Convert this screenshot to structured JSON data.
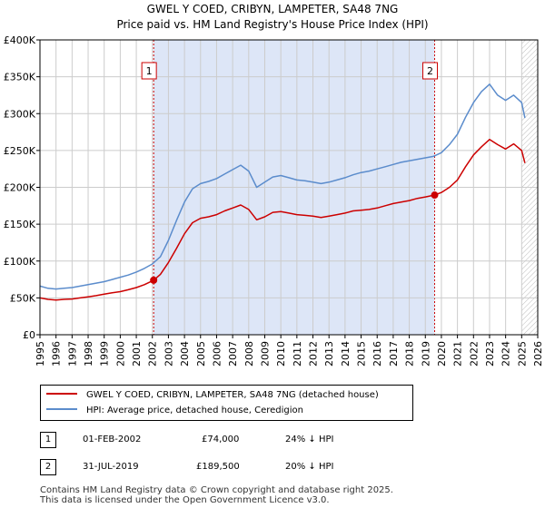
{
  "title_line1": "GWEL Y COED, CRIBYN, LAMPETER, SA48 7NG",
  "title_line2": "Price paid vs. HM Land Registry's House Price Index (HPI)",
  "legend": {
    "property_label": "GWEL Y COED, CRIBYN, LAMPETER, SA48 7NG (detached house)",
    "hpi_label": "HPI: Average price, detached house, Ceredigion"
  },
  "sales": [
    {
      "num": "1",
      "date": "01-FEB-2002",
      "price": "£74,000",
      "hpi_diff": "24% ↓ HPI"
    },
    {
      "num": "2",
      "date": "31-JUL-2019",
      "price": "£189,500",
      "hpi_diff": "20% ↓ HPI"
    }
  ],
  "footnote_line1": "Contains HM Land Registry data © Crown copyright and database right 2025.",
  "footnote_line2": "This data is licensed under the Open Government Licence v3.0.",
  "colors": {
    "property": "#cc0000",
    "hpi": "#5b8ccc",
    "shade": "#dde6f7",
    "grid": "#cccccc"
  },
  "chart_data": {
    "type": "line",
    "xlabel": "",
    "ylabel": "",
    "xlim": [
      1995,
      2026
    ],
    "ylim": [
      0,
      400000
    ],
    "x_ticks": [
      "1995",
      "1996",
      "1997",
      "1998",
      "1999",
      "2000",
      "2001",
      "2002",
      "2003",
      "2004",
      "2005",
      "2006",
      "2007",
      "2008",
      "2009",
      "2010",
      "2011",
      "2012",
      "2013",
      "2014",
      "2015",
      "2016",
      "2017",
      "2018",
      "2019",
      "2020",
      "2021",
      "2022",
      "2023",
      "2024",
      "2025",
      "2026"
    ],
    "y_ticks": [
      {
        "value": 0,
        "label": "£0"
      },
      {
        "value": 50000,
        "label": "£50K"
      },
      {
        "value": 100000,
        "label": "£100K"
      },
      {
        "value": 150000,
        "label": "£150K"
      },
      {
        "value": 200000,
        "label": "£200K"
      },
      {
        "value": 250000,
        "label": "£250K"
      },
      {
        "value": 300000,
        "label": "£300K"
      },
      {
        "value": 350000,
        "label": "£350K"
      },
      {
        "value": 400000,
        "label": "£400K"
      }
    ],
    "shaded_range": [
      2002.08,
      2019.58
    ],
    "future_hatch_start": 2025.0,
    "markers": [
      {
        "label": "1",
        "x": 2002.08,
        "y": 74000
      },
      {
        "label": "2",
        "x": 2019.58,
        "y": 189500
      }
    ],
    "series": [
      {
        "name": "GWEL Y COED, CRIBYN, LAMPETER, SA48 7NG (detached house)",
        "color": "#cc0000",
        "points": [
          [
            1995,
            50000
          ],
          [
            1995.5,
            48000
          ],
          [
            1996,
            47000
          ],
          [
            1996.5,
            48000
          ],
          [
            1997,
            48500
          ],
          [
            1997.5,
            50000
          ],
          [
            1998,
            51500
          ],
          [
            1998.5,
            53000
          ],
          [
            1999,
            55000
          ],
          [
            1999.5,
            57000
          ],
          [
            2000,
            58500
          ],
          [
            2000.5,
            61000
          ],
          [
            2001,
            64000
          ],
          [
            2001.5,
            68000
          ],
          [
            2002.08,
            74000
          ],
          [
            2002.5,
            82000
          ],
          [
            2003,
            98000
          ],
          [
            2003.5,
            117000
          ],
          [
            2004,
            137000
          ],
          [
            2004.5,
            152000
          ],
          [
            2005,
            158000
          ],
          [
            2005.5,
            160000
          ],
          [
            2006,
            163000
          ],
          [
            2006.5,
            168000
          ],
          [
            2007,
            172000
          ],
          [
            2007.5,
            176000
          ],
          [
            2008,
            170000
          ],
          [
            2008.5,
            156000
          ],
          [
            2009,
            160000
          ],
          [
            2009.5,
            166000
          ],
          [
            2010,
            167000
          ],
          [
            2010.5,
            165000
          ],
          [
            2011,
            163000
          ],
          [
            2011.5,
            162000
          ],
          [
            2012,
            161000
          ],
          [
            2012.5,
            159000
          ],
          [
            2013,
            161000
          ],
          [
            2013.5,
            163000
          ],
          [
            2014,
            165000
          ],
          [
            2014.5,
            168000
          ],
          [
            2015,
            169000
          ],
          [
            2015.5,
            170000
          ],
          [
            2016,
            172000
          ],
          [
            2016.5,
            175000
          ],
          [
            2017,
            178000
          ],
          [
            2017.5,
            180000
          ],
          [
            2018,
            182000
          ],
          [
            2018.5,
            185000
          ],
          [
            2019,
            187000
          ],
          [
            2019.58,
            189500
          ],
          [
            2020,
            193000
          ],
          [
            2020.5,
            200000
          ],
          [
            2021,
            210000
          ],
          [
            2021.5,
            228000
          ],
          [
            2022,
            244000
          ],
          [
            2022.5,
            255000
          ],
          [
            2023,
            265000
          ],
          [
            2023.5,
            258000
          ],
          [
            2024,
            252000
          ],
          [
            2024.5,
            259000
          ],
          [
            2025,
            250000
          ],
          [
            2025.2,
            233000
          ]
        ]
      },
      {
        "name": "HPI: Average price, detached house, Ceredigion",
        "color": "#5b8ccc",
        "points": [
          [
            1995,
            66000
          ],
          [
            1995.5,
            63000
          ],
          [
            1996,
            62000
          ],
          [
            1996.5,
            63000
          ],
          [
            1997,
            64000
          ],
          [
            1997.5,
            66000
          ],
          [
            1998,
            68000
          ],
          [
            1998.5,
            70000
          ],
          [
            1999,
            72000
          ],
          [
            1999.5,
            75000
          ],
          [
            2000,
            78000
          ],
          [
            2000.5,
            81000
          ],
          [
            2001,
            85000
          ],
          [
            2001.5,
            90000
          ],
          [
            2002,
            96000
          ],
          [
            2002.5,
            106000
          ],
          [
            2003,
            128000
          ],
          [
            2003.5,
            155000
          ],
          [
            2004,
            180000
          ],
          [
            2004.5,
            198000
          ],
          [
            2005,
            205000
          ],
          [
            2005.5,
            208000
          ],
          [
            2006,
            212000
          ],
          [
            2006.5,
            218000
          ],
          [
            2007,
            224000
          ],
          [
            2007.5,
            230000
          ],
          [
            2008,
            222000
          ],
          [
            2008.5,
            200000
          ],
          [
            2009,
            207000
          ],
          [
            2009.5,
            214000
          ],
          [
            2010,
            216000
          ],
          [
            2010.5,
            213000
          ],
          [
            2011,
            210000
          ],
          [
            2011.5,
            209000
          ],
          [
            2012,
            207000
          ],
          [
            2012.5,
            205000
          ],
          [
            2013,
            207000
          ],
          [
            2013.5,
            210000
          ],
          [
            2014,
            213000
          ],
          [
            2014.5,
            217000
          ],
          [
            2015,
            220000
          ],
          [
            2015.5,
            222000
          ],
          [
            2016,
            225000
          ],
          [
            2016.5,
            228000
          ],
          [
            2017,
            231000
          ],
          [
            2017.5,
            234000
          ],
          [
            2018,
            236000
          ],
          [
            2018.5,
            238000
          ],
          [
            2019,
            240000
          ],
          [
            2019.5,
            242000
          ],
          [
            2020,
            247000
          ],
          [
            2020.5,
            258000
          ],
          [
            2021,
            272000
          ],
          [
            2021.5,
            295000
          ],
          [
            2022,
            315000
          ],
          [
            2022.5,
            330000
          ],
          [
            2023,
            340000
          ],
          [
            2023.5,
            325000
          ],
          [
            2024,
            318000
          ],
          [
            2024.5,
            325000
          ],
          [
            2025,
            315000
          ],
          [
            2025.2,
            294000
          ]
        ]
      }
    ]
  }
}
